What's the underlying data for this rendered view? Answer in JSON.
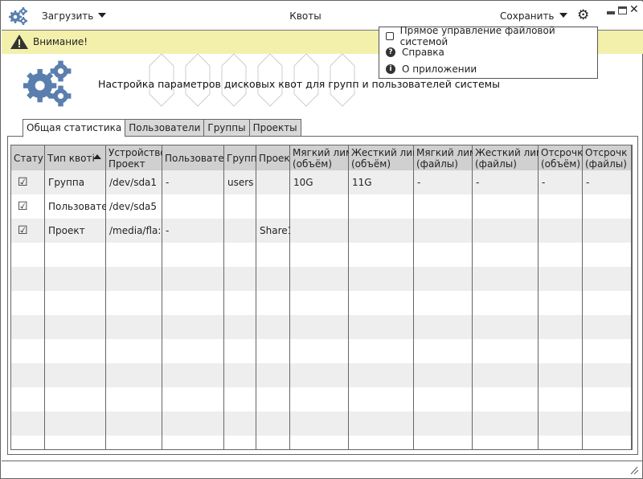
{
  "titlebar": {
    "title": "Квоты",
    "load_label": "Загрузить",
    "save_label": "Сохранить"
  },
  "warning": {
    "text": "Внимание!"
  },
  "menu": {
    "items": [
      {
        "label": "Прямое управление файловой системой",
        "icon": "checkbox-icon",
        "checked": false
      },
      {
        "label": "Справка",
        "icon": "help-icon"
      },
      {
        "label": "О приложении",
        "icon": "info-icon"
      }
    ]
  },
  "banner": {
    "text": "Настройка параметров дисковых квот для групп и пользователей системы"
  },
  "tabs": [
    {
      "label": "Общая статистика",
      "active": true
    },
    {
      "label": "Пользователи"
    },
    {
      "label": "Группы"
    },
    {
      "label": "Проекты"
    }
  ],
  "table": {
    "columns": [
      [
        "Стату",
        ""
      ],
      [
        "Тип квоті",
        ""
      ],
      [
        "Устройство",
        "Проект"
      ],
      [
        "Пользовате.",
        ""
      ],
      [
        "Группы",
        ""
      ],
      [
        "Проек",
        ""
      ],
      [
        "Мягкий лимі",
        "(объём)"
      ],
      [
        "Жесткий лим",
        "(объём)"
      ],
      [
        "Мягкий лимі",
        "(файлы)"
      ],
      [
        "Жесткий лим",
        "(файлы)"
      ],
      [
        "Отсрочк",
        "(объём)"
      ],
      [
        "Отсрочк",
        "(файлы)"
      ]
    ],
    "sort_column": "Тип квоті",
    "rows": [
      {
        "checked": true,
        "cells": [
          "",
          "Группа",
          "/dev/sda1",
          "-",
          "users",
          "",
          "10G",
          "11G",
          "-",
          "-",
          "-",
          "-"
        ]
      },
      {
        "checked": true,
        "cells": [
          "",
          "Пользовате.",
          "/dev/sda5",
          "",
          "",
          "",
          "",
          "",
          "",
          "",
          "",
          ""
        ]
      },
      {
        "checked": true,
        "cells": [
          "",
          "Проект",
          "/media/fla:",
          "-",
          "",
          "Share1",
          "",
          "",
          "",
          "",
          "",
          ""
        ]
      }
    ]
  },
  "colors": {
    "accent": "#5a7fae",
    "warning_bg": "#f3f0ac",
    "header_bg": "#d0d0d0",
    "stripe": "#eeeeee"
  }
}
